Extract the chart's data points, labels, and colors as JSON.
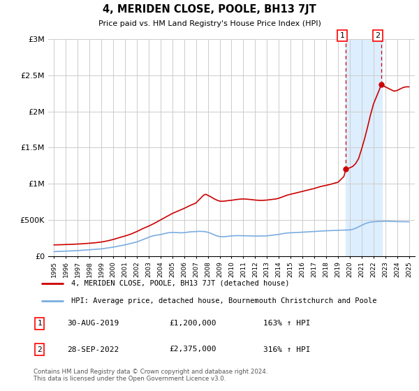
{
  "title": "4, MERIDEN CLOSE, POOLE, BH13 7JT",
  "subtitle": "Price paid vs. HM Land Registry's House Price Index (HPI)",
  "legend_line1": "4, MERIDEN CLOSE, POOLE, BH13 7JT (detached house)",
  "legend_line2": "HPI: Average price, detached house, Bournemouth Christchurch and Poole",
  "annotation1_label": "1",
  "annotation1_date": "30-AUG-2019",
  "annotation1_price": "£1,200,000",
  "annotation1_hpi": "163% ↑ HPI",
  "annotation2_label": "2",
  "annotation2_date": "28-SEP-2022",
  "annotation2_price": "£2,375,000",
  "annotation2_hpi": "316% ↑ HPI",
  "footer": "Contains HM Land Registry data © Crown copyright and database right 2024.\nThis data is licensed under the Open Government Licence v3.0.",
  "red_color": "#cc0000",
  "blue_color": "#7aace0",
  "shade_color": "#ddeeff",
  "background_color": "#ffffff",
  "grid_color": "#cccccc",
  "ylim": [
    0,
    3000000
  ],
  "yticks": [
    0,
    500000,
    1000000,
    1500000,
    2000000,
    2500000,
    3000000
  ],
  "ytick_labels": [
    "£0",
    "£500K",
    "£1M",
    "£1.5M",
    "£2M",
    "£2.5M",
    "£3M"
  ],
  "hpi_years": [
    1995.0,
    1995.08,
    1995.17,
    1995.25,
    1995.33,
    1995.42,
    1995.5,
    1995.58,
    1995.67,
    1995.75,
    1995.83,
    1995.92,
    1996.0,
    1996.25,
    1996.5,
    1996.75,
    1997.0,
    1997.25,
    1997.5,
    1997.75,
    1998.0,
    1998.25,
    1998.5,
    1998.75,
    1999.0,
    1999.25,
    1999.5,
    1999.75,
    2000.0,
    2000.25,
    2000.5,
    2000.75,
    2001.0,
    2001.25,
    2001.5,
    2001.75,
    2002.0,
    2002.25,
    2002.5,
    2002.75,
    2003.0,
    2003.25,
    2003.5,
    2003.75,
    2004.0,
    2004.25,
    2004.5,
    2004.75,
    2005.0,
    2005.25,
    2005.5,
    2005.75,
    2006.0,
    2006.25,
    2006.5,
    2006.75,
    2007.0,
    2007.25,
    2007.5,
    2007.75,
    2008.0,
    2008.25,
    2008.5,
    2008.75,
    2009.0,
    2009.25,
    2009.5,
    2009.75,
    2010.0,
    2010.25,
    2010.5,
    2010.75,
    2011.0,
    2011.25,
    2011.5,
    2011.75,
    2012.0,
    2012.25,
    2012.5,
    2012.75,
    2013.0,
    2013.25,
    2013.5,
    2013.75,
    2014.0,
    2014.25,
    2014.5,
    2014.75,
    2015.0,
    2015.25,
    2015.5,
    2015.75,
    2016.0,
    2016.25,
    2016.5,
    2016.75,
    2017.0,
    2017.25,
    2017.5,
    2017.75,
    2018.0,
    2018.25,
    2018.5,
    2018.75,
    2019.0,
    2019.25,
    2019.5,
    2019.75,
    2020.0,
    2020.25,
    2020.5,
    2020.75,
    2021.0,
    2021.25,
    2021.5,
    2021.75,
    2022.0,
    2022.25,
    2022.5,
    2022.75,
    2023.0,
    2023.25,
    2023.5,
    2023.75,
    2024.0,
    2024.25,
    2024.5,
    2024.75,
    2025.0
  ],
  "hpi_values": [
    62000,
    62500,
    63000,
    63500,
    64000,
    64500,
    65000,
    65500,
    66000,
    66500,
    67000,
    67500,
    68000,
    70000,
    72000,
    74000,
    76000,
    79000,
    82000,
    85000,
    88000,
    91000,
    94000,
    97000,
    100000,
    106000,
    112000,
    118000,
    124000,
    132000,
    140000,
    148000,
    156000,
    166000,
    176000,
    186000,
    196000,
    212000,
    228000,
    244000,
    260000,
    275000,
    285000,
    292000,
    298000,
    308000,
    318000,
    325000,
    328000,
    326000,
    324000,
    322000,
    325000,
    330000,
    335000,
    338000,
    340000,
    342000,
    342000,
    338000,
    330000,
    315000,
    298000,
    280000,
    270000,
    268000,
    270000,
    275000,
    280000,
    282000,
    283000,
    282000,
    280000,
    279000,
    278000,
    277000,
    276000,
    277000,
    278000,
    279000,
    280000,
    285000,
    290000,
    295000,
    300000,
    308000,
    315000,
    320000,
    322000,
    325000,
    327000,
    328000,
    330000,
    333000,
    336000,
    338000,
    340000,
    343000,
    346000,
    348000,
    350000,
    353000,
    355000,
    356000,
    357000,
    358000,
    359000,
    360000,
    362000,
    370000,
    385000,
    405000,
    425000,
    445000,
    460000,
    470000,
    475000,
    478000,
    480000,
    482000,
    483000,
    482000,
    480000,
    478000,
    477000,
    476000,
    475000,
    475000,
    475000
  ],
  "red_years": [
    1995.0,
    1995.5,
    1996.0,
    1996.5,
    1997.0,
    1997.5,
    1998.0,
    1998.5,
    1999.0,
    1999.5,
    2000.0,
    2000.5,
    2001.0,
    2001.5,
    2002.0,
    2002.5,
    2003.0,
    2003.5,
    2004.0,
    2004.5,
    2005.0,
    2005.5,
    2006.0,
    2006.5,
    2007.0,
    2007.17,
    2007.33,
    2007.5,
    2007.67,
    2007.83,
    2008.0,
    2008.25,
    2008.5,
    2008.75,
    2009.0,
    2009.25,
    2009.5,
    2009.75,
    2010.0,
    2010.25,
    2010.5,
    2010.75,
    2011.0,
    2011.25,
    2011.5,
    2011.75,
    2012.0,
    2012.25,
    2012.5,
    2012.75,
    2013.0,
    2013.25,
    2013.5,
    2013.75,
    2014.0,
    2014.25,
    2014.5,
    2014.75,
    2015.0,
    2015.25,
    2015.5,
    2015.75,
    2016.0,
    2016.25,
    2016.5,
    2016.75,
    2017.0,
    2017.25,
    2017.5,
    2017.75,
    2018.0,
    2018.25,
    2018.5,
    2018.75,
    2019.0,
    2019.25,
    2019.5,
    2019.67,
    2019.75,
    2020.0,
    2020.25,
    2020.5,
    2020.75,
    2021.0,
    2021.25,
    2021.5,
    2021.75,
    2022.0,
    2022.25,
    2022.5,
    2022.67,
    2022.83,
    2023.0,
    2023.25,
    2023.5,
    2023.75,
    2024.0,
    2024.25,
    2024.5,
    2024.75,
    2025.0
  ],
  "red_values": [
    155000,
    157000,
    160000,
    163000,
    167000,
    172000,
    178000,
    185000,
    195000,
    210000,
    230000,
    255000,
    278000,
    305000,
    340000,
    380000,
    415000,
    455000,
    500000,
    545000,
    590000,
    625000,
    660000,
    700000,
    735000,
    765000,
    790000,
    820000,
    845000,
    855000,
    840000,
    820000,
    795000,
    775000,
    760000,
    758000,
    762000,
    768000,
    772000,
    778000,
    784000,
    788000,
    790000,
    788000,
    784000,
    780000,
    775000,
    772000,
    770000,
    772000,
    775000,
    780000,
    785000,
    790000,
    800000,
    815000,
    830000,
    845000,
    855000,
    865000,
    875000,
    885000,
    895000,
    905000,
    915000,
    925000,
    935000,
    948000,
    960000,
    970000,
    978000,
    988000,
    998000,
    1010000,
    1020000,
    1060000,
    1100000,
    1200000,
    1210000,
    1220000,
    1240000,
    1280000,
    1350000,
    1480000,
    1620000,
    1780000,
    1950000,
    2100000,
    2200000,
    2300000,
    2375000,
    2360000,
    2340000,
    2320000,
    2300000,
    2280000,
    2290000,
    2310000,
    2330000,
    2340000,
    2340000
  ],
  "shade_xmin": 2019.67,
  "shade_xmax": 2022.75,
  "point1_x": 2019.67,
  "point1_y": 1200000,
  "point2_x": 2022.67,
  "point2_y": 2375000,
  "xlim": [
    1994.5,
    2025.5
  ],
  "xtick_years": [
    1995,
    1996,
    1997,
    1998,
    1999,
    2000,
    2001,
    2002,
    2003,
    2004,
    2005,
    2006,
    2007,
    2008,
    2009,
    2010,
    2011,
    2012,
    2013,
    2014,
    2015,
    2016,
    2017,
    2018,
    2019,
    2020,
    2021,
    2022,
    2023,
    2024,
    2025
  ]
}
